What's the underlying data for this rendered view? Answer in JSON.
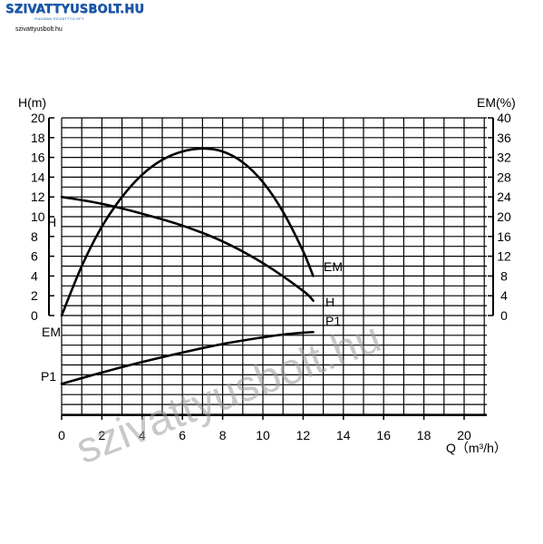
{
  "logo": {
    "brand": "SZIVATTYUSBOLT.HU",
    "tagline": "RAUMAN SZIVATTYÚ KFT.",
    "url": "szivattyusbolt.hu"
  },
  "watermark": "szivattyusbolt.hu",
  "chart_data": {
    "type": "line",
    "xlabel": "Q（m³/h）",
    "ylabel_left": "H(m)",
    "ylabel_right": "EM(%)",
    "xlim": [
      0,
      20
    ],
    "ylim_left": [
      0,
      20
    ],
    "ylim_right": [
      0,
      40
    ],
    "x_ticks": [
      0,
      2,
      4,
      6,
      8,
      10,
      12,
      14,
      16,
      18,
      20
    ],
    "y_ticks_left": [
      0,
      2,
      4,
      6,
      8,
      10,
      12,
      14,
      16,
      18,
      20
    ],
    "y_ticks_right": [
      0,
      4,
      8,
      12,
      16,
      20,
      24,
      28,
      32,
      36,
      40
    ],
    "grid": true,
    "series": [
      {
        "name": "H",
        "axis": "left",
        "x": [
          0,
          2,
          4,
          6,
          8,
          10,
          12,
          12.5
        ],
        "y": [
          12,
          11.3,
          10.3,
          9.1,
          7.5,
          5.3,
          2.5,
          1.5
        ]
      },
      {
        "name": "EM",
        "axis": "right",
        "x": [
          0,
          1,
          2,
          3,
          4,
          5,
          6,
          7,
          8,
          9,
          10,
          11,
          12,
          12.5
        ],
        "y": [
          0,
          10,
          18,
          24,
          28.5,
          31.5,
          33.2,
          33.8,
          33.2,
          31,
          27,
          21,
          13,
          8
        ]
      },
      {
        "name": "P1",
        "axis": "bottom",
        "x": [
          0,
          2,
          4,
          6,
          8,
          10,
          11,
          12,
          12.5
        ],
        "y": [
          0.33,
          0.45,
          0.56,
          0.66,
          0.75,
          0.82,
          0.85,
          0.87,
          0.875
        ]
      }
    ],
    "annotations": {
      "left_H": "H",
      "left_EM": "EM",
      "left_P1": "P1",
      "end_EM": "EM",
      "end_H": "H",
      "end_P1": "P1"
    }
  }
}
